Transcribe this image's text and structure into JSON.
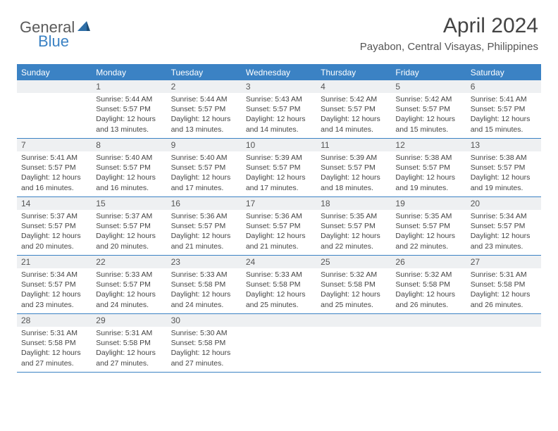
{
  "brand": {
    "part1": "General",
    "part2": "Blue"
  },
  "title": "April 2024",
  "location": "Payabon, Central Visayas, Philippines",
  "colors": {
    "accent": "#3b82c4",
    "header_bg": "#3b82c4",
    "header_text": "#ffffff",
    "num_row_bg": "#eef0f2",
    "body_text": "#444444",
    "title_text": "#444444",
    "location_text": "#555555",
    "logo_gray": "#5a5a5a"
  },
  "day_names": [
    "Sunday",
    "Monday",
    "Tuesday",
    "Wednesday",
    "Thursday",
    "Friday",
    "Saturday"
  ],
  "weeks": [
    [
      {
        "n": "",
        "sr": "",
        "ss": "",
        "dl": ""
      },
      {
        "n": "1",
        "sr": "Sunrise: 5:44 AM",
        "ss": "Sunset: 5:57 PM",
        "dl": "Daylight: 12 hours and 13 minutes."
      },
      {
        "n": "2",
        "sr": "Sunrise: 5:44 AM",
        "ss": "Sunset: 5:57 PM",
        "dl": "Daylight: 12 hours and 13 minutes."
      },
      {
        "n": "3",
        "sr": "Sunrise: 5:43 AM",
        "ss": "Sunset: 5:57 PM",
        "dl": "Daylight: 12 hours and 14 minutes."
      },
      {
        "n": "4",
        "sr": "Sunrise: 5:42 AM",
        "ss": "Sunset: 5:57 PM",
        "dl": "Daylight: 12 hours and 14 minutes."
      },
      {
        "n": "5",
        "sr": "Sunrise: 5:42 AM",
        "ss": "Sunset: 5:57 PM",
        "dl": "Daylight: 12 hours and 15 minutes."
      },
      {
        "n": "6",
        "sr": "Sunrise: 5:41 AM",
        "ss": "Sunset: 5:57 PM",
        "dl": "Daylight: 12 hours and 15 minutes."
      }
    ],
    [
      {
        "n": "7",
        "sr": "Sunrise: 5:41 AM",
        "ss": "Sunset: 5:57 PM",
        "dl": "Daylight: 12 hours and 16 minutes."
      },
      {
        "n": "8",
        "sr": "Sunrise: 5:40 AM",
        "ss": "Sunset: 5:57 PM",
        "dl": "Daylight: 12 hours and 16 minutes."
      },
      {
        "n": "9",
        "sr": "Sunrise: 5:40 AM",
        "ss": "Sunset: 5:57 PM",
        "dl": "Daylight: 12 hours and 17 minutes."
      },
      {
        "n": "10",
        "sr": "Sunrise: 5:39 AM",
        "ss": "Sunset: 5:57 PM",
        "dl": "Daylight: 12 hours and 17 minutes."
      },
      {
        "n": "11",
        "sr": "Sunrise: 5:39 AM",
        "ss": "Sunset: 5:57 PM",
        "dl": "Daylight: 12 hours and 18 minutes."
      },
      {
        "n": "12",
        "sr": "Sunrise: 5:38 AM",
        "ss": "Sunset: 5:57 PM",
        "dl": "Daylight: 12 hours and 19 minutes."
      },
      {
        "n": "13",
        "sr": "Sunrise: 5:38 AM",
        "ss": "Sunset: 5:57 PM",
        "dl": "Daylight: 12 hours and 19 minutes."
      }
    ],
    [
      {
        "n": "14",
        "sr": "Sunrise: 5:37 AM",
        "ss": "Sunset: 5:57 PM",
        "dl": "Daylight: 12 hours and 20 minutes."
      },
      {
        "n": "15",
        "sr": "Sunrise: 5:37 AM",
        "ss": "Sunset: 5:57 PM",
        "dl": "Daylight: 12 hours and 20 minutes."
      },
      {
        "n": "16",
        "sr": "Sunrise: 5:36 AM",
        "ss": "Sunset: 5:57 PM",
        "dl": "Daylight: 12 hours and 21 minutes."
      },
      {
        "n": "17",
        "sr": "Sunrise: 5:36 AM",
        "ss": "Sunset: 5:57 PM",
        "dl": "Daylight: 12 hours and 21 minutes."
      },
      {
        "n": "18",
        "sr": "Sunrise: 5:35 AM",
        "ss": "Sunset: 5:57 PM",
        "dl": "Daylight: 12 hours and 22 minutes."
      },
      {
        "n": "19",
        "sr": "Sunrise: 5:35 AM",
        "ss": "Sunset: 5:57 PM",
        "dl": "Daylight: 12 hours and 22 minutes."
      },
      {
        "n": "20",
        "sr": "Sunrise: 5:34 AM",
        "ss": "Sunset: 5:57 PM",
        "dl": "Daylight: 12 hours and 23 minutes."
      }
    ],
    [
      {
        "n": "21",
        "sr": "Sunrise: 5:34 AM",
        "ss": "Sunset: 5:57 PM",
        "dl": "Daylight: 12 hours and 23 minutes."
      },
      {
        "n": "22",
        "sr": "Sunrise: 5:33 AM",
        "ss": "Sunset: 5:57 PM",
        "dl": "Daylight: 12 hours and 24 minutes."
      },
      {
        "n": "23",
        "sr": "Sunrise: 5:33 AM",
        "ss": "Sunset: 5:58 PM",
        "dl": "Daylight: 12 hours and 24 minutes."
      },
      {
        "n": "24",
        "sr": "Sunrise: 5:33 AM",
        "ss": "Sunset: 5:58 PM",
        "dl": "Daylight: 12 hours and 25 minutes."
      },
      {
        "n": "25",
        "sr": "Sunrise: 5:32 AM",
        "ss": "Sunset: 5:58 PM",
        "dl": "Daylight: 12 hours and 25 minutes."
      },
      {
        "n": "26",
        "sr": "Sunrise: 5:32 AM",
        "ss": "Sunset: 5:58 PM",
        "dl": "Daylight: 12 hours and 26 minutes."
      },
      {
        "n": "27",
        "sr": "Sunrise: 5:31 AM",
        "ss": "Sunset: 5:58 PM",
        "dl": "Daylight: 12 hours and 26 minutes."
      }
    ],
    [
      {
        "n": "28",
        "sr": "Sunrise: 5:31 AM",
        "ss": "Sunset: 5:58 PM",
        "dl": "Daylight: 12 hours and 27 minutes."
      },
      {
        "n": "29",
        "sr": "Sunrise: 5:31 AM",
        "ss": "Sunset: 5:58 PM",
        "dl": "Daylight: 12 hours and 27 minutes."
      },
      {
        "n": "30",
        "sr": "Sunrise: 5:30 AM",
        "ss": "Sunset: 5:58 PM",
        "dl": "Daylight: 12 hours and 27 minutes."
      },
      {
        "n": "",
        "sr": "",
        "ss": "",
        "dl": ""
      },
      {
        "n": "",
        "sr": "",
        "ss": "",
        "dl": ""
      },
      {
        "n": "",
        "sr": "",
        "ss": "",
        "dl": ""
      },
      {
        "n": "",
        "sr": "",
        "ss": "",
        "dl": ""
      }
    ]
  ]
}
